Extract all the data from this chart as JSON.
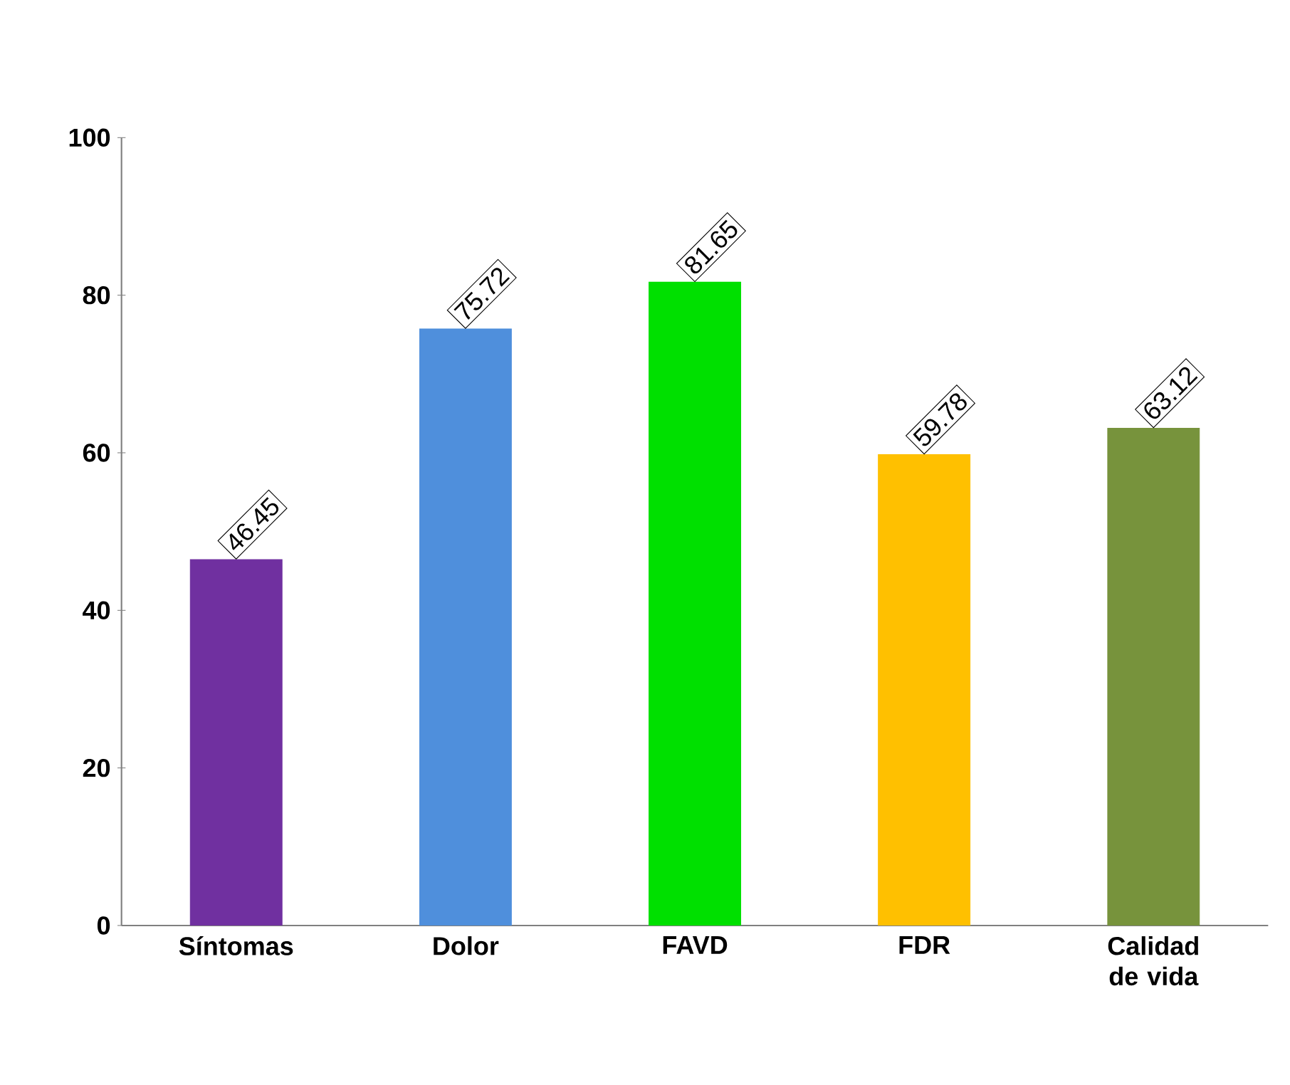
{
  "chart_data": {
    "type": "bar",
    "categories": [
      "Síntomas",
      "Dolor",
      "FAVD",
      "FDR",
      "Calidad de vida"
    ],
    "values": [
      46.45,
      75.72,
      81.65,
      59.78,
      63.12
    ],
    "colors": [
      "#7030a0",
      "#4f8fdc",
      "#00e000",
      "#ffc000",
      "#77933c"
    ],
    "ylim": [
      0,
      100
    ],
    "yticks": [
      0,
      20,
      40,
      60,
      80,
      100
    ],
    "data_labels": true
  }
}
